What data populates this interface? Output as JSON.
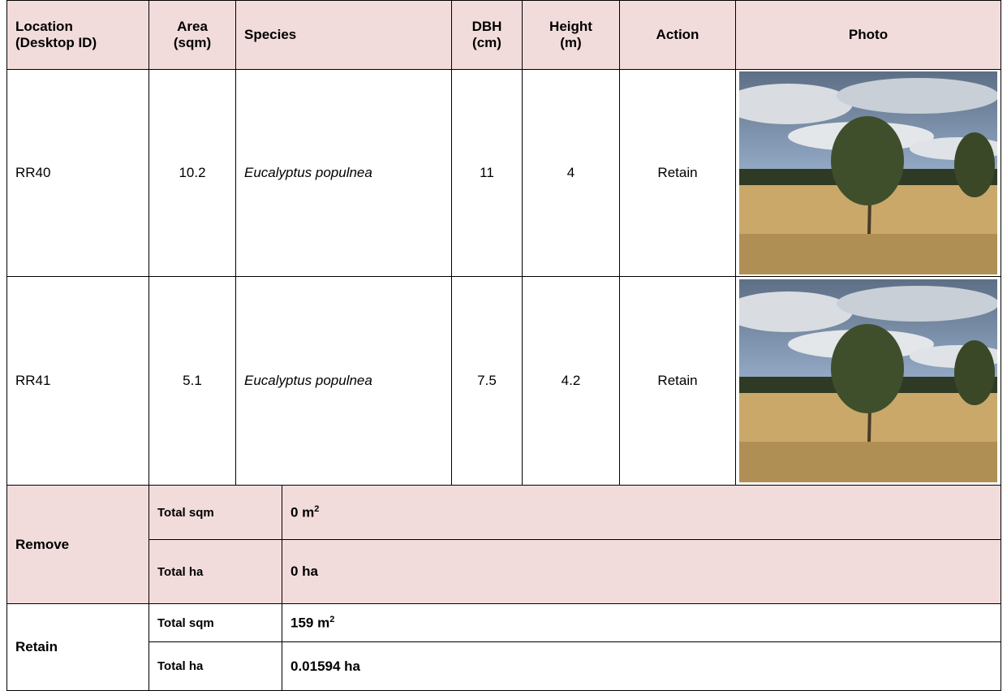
{
  "table": {
    "header": [
      "Location (Desktop ID)",
      "Area (sqm)",
      "Species",
      "DBH (cm)",
      "Height (m)",
      "Action",
      "Photo"
    ],
    "rows": [
      [
        "RR40",
        "10.2",
        "Eucalyptus populnea",
        "11",
        "4",
        "Retain"
      ],
      [
        "RR41",
        "5.1",
        "Eucalyptus populnea",
        "7.5",
        "4.2",
        "Retain"
      ]
    ]
  },
  "summary": [
    {
      "label": "Remove",
      "rows": [
        {
          "label": "Total sqm",
          "value": "0 m",
          "sup": "2"
        },
        {
          "label": "Total ha",
          "value": "0 ha"
        }
      ]
    },
    {
      "label": "Retain",
      "rows": [
        {
          "label": "Total sqm",
          "value": "159 m",
          "sup": "2"
        },
        {
          "label": "Total ha",
          "value": "0.01594 ha"
        }
      ]
    }
  ]
}
